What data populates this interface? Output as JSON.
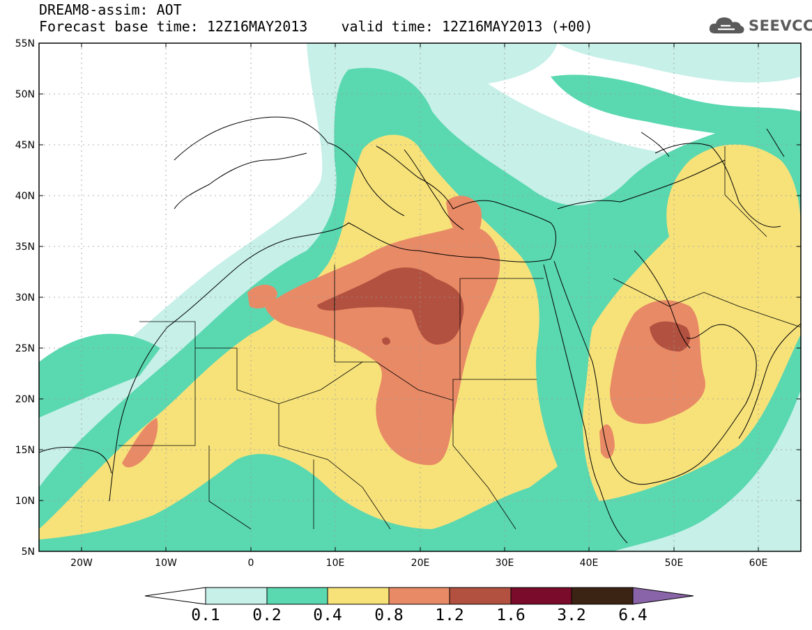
{
  "header": {
    "line1": "DREAM8-assim: AOT",
    "line2": "Forecast base time: 12Z16MAY2013    valid time: 12Z16MAY2013 (+00)",
    "logo_text": "SEEVCCC",
    "logo_icon": "cloud-icon"
  },
  "map": {
    "lon_range": [
      -25,
      65
    ],
    "lat_range": [
      5,
      55
    ],
    "lat_labels": [
      "55N",
      "50N",
      "45N",
      "40N",
      "35N",
      "30N",
      "25N",
      "20N",
      "15N",
      "10N",
      "5N"
    ],
    "lon_labels": [
      "20W",
      "10W",
      "0",
      "10E",
      "20E",
      "30E",
      "40E",
      "50E",
      "60E"
    ]
  },
  "colorbar": {
    "labels": [
      "0.1",
      "0.2",
      "0.4",
      "0.8",
      "1.2",
      "1.6",
      "3.2",
      "6.4"
    ],
    "colors": [
      "#ffffff",
      "#c6f0e8",
      "#5ad8b0",
      "#f7e27a",
      "#e98a66",
      "#b2513f",
      "#7a0b2a",
      "#3b2414",
      "#8a64a8"
    ]
  }
}
